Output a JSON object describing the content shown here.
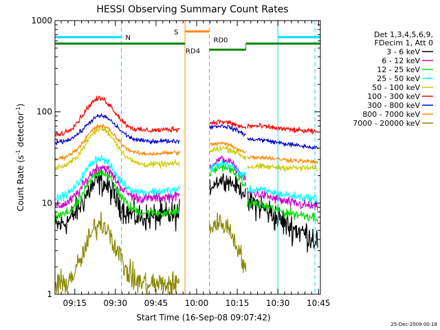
{
  "chart_data": {
    "type": "line",
    "title": "HESSI Observing Summary Count Rates",
    "xlabel": "Start Time (16-Sep-08 09:07:42)",
    "ylabel_main": "Count Rate (s",
    "ylabel_sup1": "-1",
    "ylabel_mid": " detector",
    "ylabel_sup2": "-1",
    "ylabel_end": ")",
    "y_scale": "log",
    "ylim": [
      1,
      1000
    ],
    "xlim_minutes": [
      0,
      98
    ],
    "x_ticks": [
      {
        "label": "09:15",
        "minute": 7.3
      },
      {
        "label": "09:30",
        "minute": 22.3
      },
      {
        "label": "09:45",
        "minute": 37.3
      },
      {
        "label": "10:00",
        "minute": 52.3
      },
      {
        "label": "10:15",
        "minute": 67.3
      },
      {
        "label": "10:30",
        "minute": 82.3
      },
      {
        "label": "10:45",
        "minute": 97.3
      }
    ],
    "y_ticks": [
      {
        "label": "1",
        "value": 1
      },
      {
        "label": "10",
        "value": 10
      },
      {
        "label": "100",
        "value": 100
      },
      {
        "label": "1000",
        "value": 1000
      }
    ],
    "legend_header": [
      "Det 1,3,4,5,6,9,",
      "FDecim 1, Att 0"
    ],
    "legend_position": "right",
    "series": [
      {
        "name": "3 - 6 keV",
        "color": "#000000",
        "segments": [
          {
            "t0": 0,
            "t1": 46,
            "peak": 17,
            "start": 5.5,
            "end": 7.5,
            "tpeak": 16.5,
            "noise": 0.13
          },
          {
            "t0": 57,
            "t1": 70.5,
            "peak": 18,
            "start": 10,
            "end": 11,
            "tpeak": 62,
            "noise": 0.08
          },
          {
            "t0": 71,
            "t1": 97,
            "peak": 10,
            "start": 9,
            "end": 4,
            "tpeak": 71,
            "noise": 0.14
          }
        ]
      },
      {
        "name": "6 - 12 keV",
        "color": "#cc00cc",
        "segments": [
          {
            "t0": 0,
            "t1": 46,
            "peak": 25,
            "start": 9,
            "end": 12,
            "tpeak": 17,
            "noise": 0.05
          },
          {
            "t0": 57,
            "t1": 70.5,
            "peak": 30,
            "start": 17,
            "end": 14,
            "tpeak": 62,
            "noise": 0.04
          },
          {
            "t0": 71,
            "t1": 97,
            "peak": 13,
            "start": 12,
            "end": 9,
            "tpeak": 71,
            "noise": 0.05
          }
        ]
      },
      {
        "name": "12 - 25 keV",
        "color": "#00dd00",
        "segments": [
          {
            "t0": 0,
            "t1": 46,
            "peak": 22,
            "start": 7,
            "end": 8,
            "tpeak": 17,
            "noise": 0.05
          },
          {
            "t0": 57,
            "t1": 70.5,
            "peak": 25,
            "start": 14,
            "end": 12,
            "tpeak": 62,
            "noise": 0.04
          },
          {
            "t0": 71,
            "t1": 97,
            "peak": 10,
            "start": 9,
            "end": 7,
            "tpeak": 71,
            "noise": 0.05
          }
        ]
      },
      {
        "name": "25 - 50 keV",
        "color": "#00ffff",
        "segments": [
          {
            "t0": 0,
            "t1": 46,
            "peak": 31,
            "start": 11,
            "end": 14,
            "tpeak": 16.5,
            "noise": 0.04
          },
          {
            "t0": 57,
            "t1": 70.5,
            "peak": 27,
            "start": 19,
            "end": 16,
            "tpeak": 62,
            "noise": 0.04
          },
          {
            "t0": 71,
            "t1": 97,
            "peak": 14,
            "start": 14,
            "end": 11,
            "tpeak": 71,
            "noise": 0.04
          }
        ]
      },
      {
        "name": "50 - 100 keV",
        "color": "#cccc00",
        "segments": [
          {
            "t0": 0,
            "t1": 46,
            "peak": 65,
            "start": 24,
            "end": 27,
            "tpeak": 17,
            "noise": 0.03
          },
          {
            "t0": 57,
            "t1": 70.5,
            "peak": 40,
            "start": 29,
            "end": 28,
            "tpeak": 62,
            "noise": 0.03
          },
          {
            "t0": 71,
            "t1": 97,
            "peak": 25,
            "start": 25,
            "end": 24,
            "tpeak": 71,
            "noise": 0.03
          }
        ]
      },
      {
        "name": "100 - 300 keV",
        "color": "#ff0000",
        "segments": [
          {
            "t0": 0,
            "t1": 46,
            "peak": 140,
            "start": 55,
            "end": 65,
            "tpeak": 16.5,
            "noise": 0.025
          },
          {
            "t0": 57,
            "t1": 70.5,
            "peak": 78,
            "start": 66,
            "end": 63,
            "tpeak": 61,
            "noise": 0.025
          },
          {
            "t0": 71,
            "t1": 97,
            "peak": 70,
            "start": 70,
            "end": 60,
            "tpeak": 71,
            "noise": 0.025
          }
        ]
      },
      {
        "name": "300 - 800 keV",
        "color": "#0000cc",
        "segments": [
          {
            "t0": 0,
            "t1": 46,
            "peak": 90,
            "start": 46,
            "end": 48,
            "tpeak": 17,
            "noise": 0.02
          },
          {
            "t0": 57,
            "t1": 70.5,
            "peak": 70,
            "start": 62,
            "end": 52,
            "tpeak": 61,
            "noise": 0.02
          },
          {
            "t0": 71,
            "t1": 97,
            "peak": 50,
            "start": 50,
            "end": 40,
            "tpeak": 71,
            "noise": 0.02
          }
        ]
      },
      {
        "name": "800 - 7000 keV",
        "color": "#ff8800",
        "segments": [
          {
            "t0": 0,
            "t1": 46,
            "peak": 70,
            "start": 30,
            "end": 36,
            "tpeak": 17,
            "noise": 0.02
          },
          {
            "t0": 57,
            "t1": 70.5,
            "peak": 45,
            "start": 38,
            "end": 33,
            "tpeak": 61,
            "noise": 0.02
          },
          {
            "t0": 71,
            "t1": 97,
            "peak": 32,
            "start": 32,
            "end": 28,
            "tpeak": 71,
            "noise": 0.02
          }
        ]
      },
      {
        "name": "7000 - 20000 keV",
        "color": "#888800",
        "segments": [
          {
            "t0": 0,
            "t1": 46,
            "peak": 6,
            "start": 1.2,
            "end": 1.3,
            "tpeak": 17,
            "noise": 0.12
          },
          {
            "t0": 57,
            "t1": 70.5,
            "peak": 6,
            "start": 4,
            "end": 1.3,
            "tpeak": 61,
            "noise": 0.1
          }
        ]
      }
    ],
    "annotations": {
      "n_label": "N",
      "s_label": "S",
      "rd4_label": "RD4",
      "rd0_label": "RD0",
      "night_bars": [
        [
          0,
          24.5
        ],
        [
          82.3,
          98
        ]
      ],
      "night_lines": [
        0,
        24.5,
        82.3,
        96
      ],
      "saa_bar": [
        48,
        57
      ],
      "saa_lines": [
        48,
        57
      ],
      "decim_high_level": 560,
      "decim_low_level": 480,
      "decim_high": [
        [
          0,
          48
        ],
        [
          70.5,
          98
        ]
      ],
      "decim_low": [
        [
          57,
          70.5
        ]
      ],
      "decim_change_line": 70.5,
      "n_bar_level": 660,
      "s_bar_level": 760
    }
  },
  "footer": {
    "timestamp": "25-Dec-2009 00:18"
  }
}
